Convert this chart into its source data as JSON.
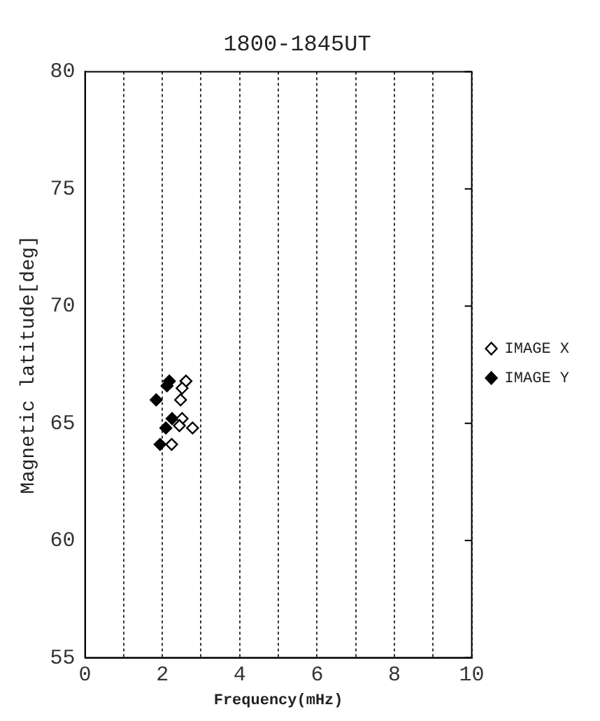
{
  "chart_data": {
    "type": "scatter",
    "title": "1800-1845UT",
    "xlabel": "Frequency(mHz)",
    "ylabel": "Magnetic latitude[deg]",
    "xlim": [
      0,
      10
    ],
    "xticks": [
      0,
      {
        "value": 1,
        "label": null
      },
      2,
      {
        "value": 3,
        "label": null
      },
      4,
      {
        "value": 5,
        "label": null
      },
      6,
      {
        "value": 7,
        "label": null
      },
      8,
      {
        "value": 9,
        "label": null
      },
      10
    ],
    "ylim": [
      55,
      80
    ],
    "yticks": [
      55,
      60,
      65,
      70,
      75,
      80
    ],
    "grid": "x",
    "legend": "right",
    "marker": "diamond",
    "series": [
      {
        "name": "IMAGE X",
        "color": "#000000",
        "x": [
          2.61,
          2.51,
          2.47,
          2.51,
          2.44,
          2.78,
          2.24
        ],
        "values": [
          66.8,
          66.5,
          66.0,
          65.2,
          64.9,
          64.8,
          64.1
        ]
      },
      {
        "name": "IMAGE Y",
        "color": "#000000",
        "x": [
          2.18,
          2.12,
          1.84,
          2.25,
          null,
          2.09,
          1.94
        ],
        "values": [
          66.8,
          66.6,
          66.0,
          65.2,
          null,
          64.8,
          64.1
        ]
      }
    ]
  }
}
